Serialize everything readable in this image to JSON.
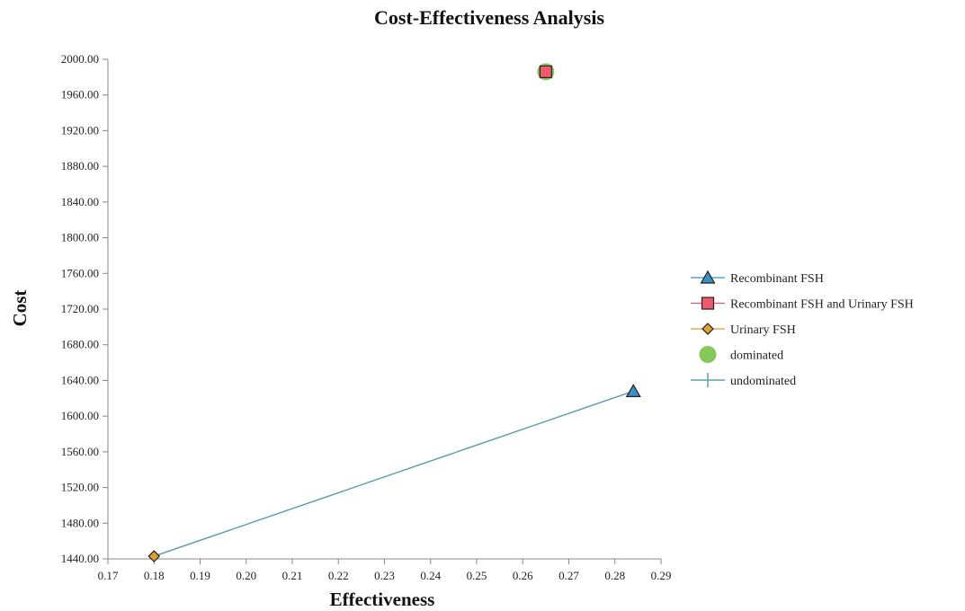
{
  "chart_data": {
    "type": "scatter",
    "title": "Cost-Effectiveness Analysis",
    "xlabel": "Effectiveness",
    "ylabel": "Cost",
    "xlim": [
      0.17,
      0.29
    ],
    "ylim": [
      1440,
      2000
    ],
    "x_ticks": [
      "0.17",
      "0.18",
      "0.19",
      "0.20",
      "0.21",
      "0.22",
      "0.23",
      "0.24",
      "0.25",
      "0.26",
      "0.27",
      "0.28",
      "0.29"
    ],
    "y_ticks": [
      "1440.00",
      "1480.00",
      "1520.00",
      "1560.00",
      "1600.00",
      "1640.00",
      "1680.00",
      "1720.00",
      "1760.00",
      "1800.00",
      "1840.00",
      "1880.00",
      "1920.00",
      "1960.00",
      "2000.00"
    ],
    "grid": false,
    "legend_position": "right",
    "series": [
      {
        "name": "Recombinant FSH",
        "marker": "triangle",
        "color": "#3d8fc4",
        "x": 0.284,
        "y": 1628
      },
      {
        "name": "Recombinant FSH and Urinary FSH",
        "marker": "square",
        "color": "#f05a6e",
        "x": 0.265,
        "y": 1986
      },
      {
        "name": "Urinary FSH",
        "marker": "diamond",
        "color": "#e0a030",
        "x": 0.18,
        "y": 1443
      },
      {
        "name": "dominated",
        "marker": "circle",
        "color": "#86c95a",
        "points": [
          {
            "x": 0.265,
            "y": 1986
          }
        ]
      },
      {
        "name": "undominated",
        "marker": "line",
        "color": "#5fa0ad",
        "points": [
          {
            "x": 0.18,
            "y": 1443
          },
          {
            "x": 0.284,
            "y": 1628
          }
        ]
      }
    ]
  }
}
